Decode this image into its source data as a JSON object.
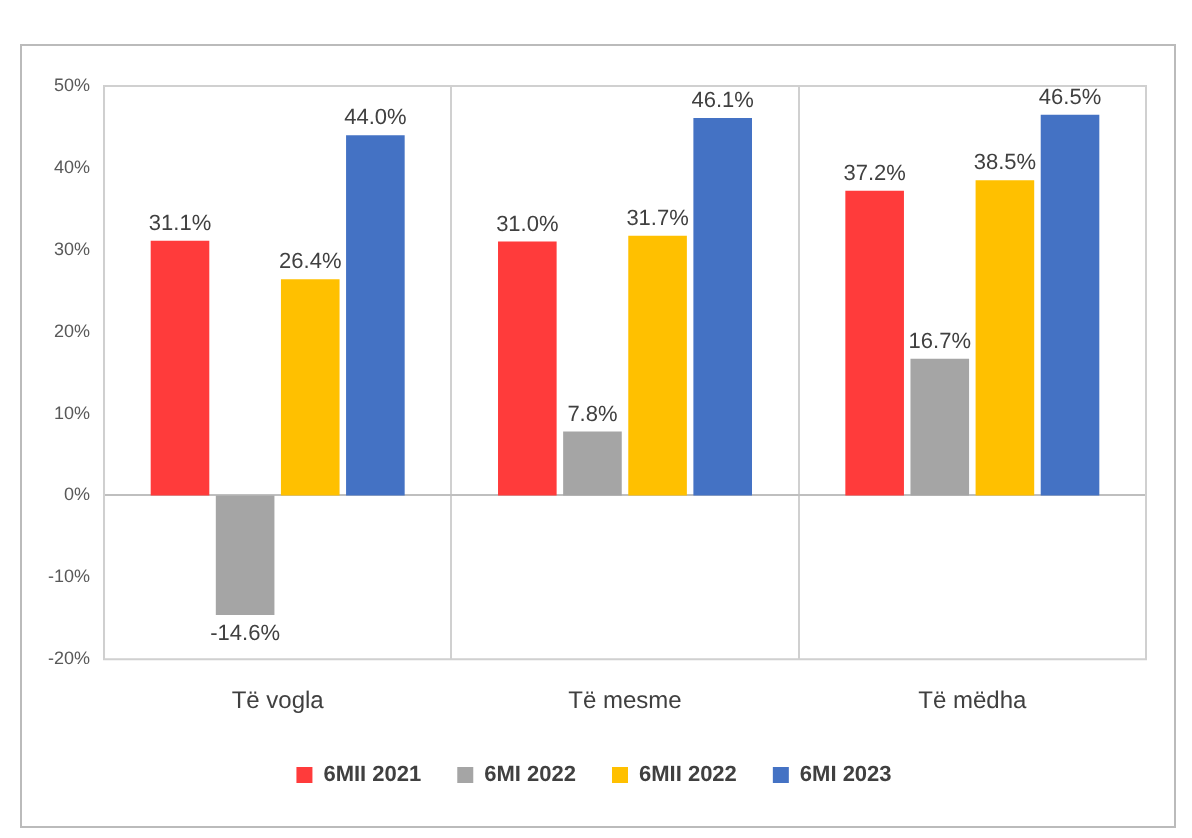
{
  "chart_data": {
    "type": "bar",
    "categories": [
      "Të vogla",
      "Të mesme",
      "Të mëdha"
    ],
    "series": [
      {
        "name": "6MII 2021",
        "color": "#ff3b3b",
        "values": [
          31.1,
          31.0,
          37.2
        ],
        "value_labels": [
          "31.1%",
          "31.0%",
          "37.2%"
        ]
      },
      {
        "name": "6MI 2022",
        "color": "#a5a5a5",
        "values": [
          -14.6,
          7.8,
          16.7
        ],
        "value_labels": [
          "-14.6%",
          "7.8%",
          "16.7%"
        ]
      },
      {
        "name": "6MII 2022",
        "color": "#ffc000",
        "values": [
          26.4,
          31.7,
          38.5
        ],
        "value_labels": [
          "26.4%",
          "31.7%",
          "38.5%"
        ]
      },
      {
        "name": "6MI 2023",
        "color": "#4472c4",
        "values": [
          44.0,
          46.1,
          46.5
        ],
        "value_labels": [
          "44.0%",
          "46.1%",
          "46.5%"
        ]
      }
    ],
    "ylim": [
      -20,
      50
    ],
    "yticks": [
      {
        "value": -20,
        "label": "-20%"
      },
      {
        "value": -10,
        "label": "-10%"
      },
      {
        "value": 0,
        "label": "0%"
      },
      {
        "value": 10,
        "label": "10%"
      },
      {
        "value": 20,
        "label": "20%"
      },
      {
        "value": 30,
        "label": "30%"
      },
      {
        "value": 40,
        "label": "40%"
      },
      {
        "value": 50,
        "label": "50%"
      }
    ],
    "grid": "x",
    "legend": "bottom"
  }
}
